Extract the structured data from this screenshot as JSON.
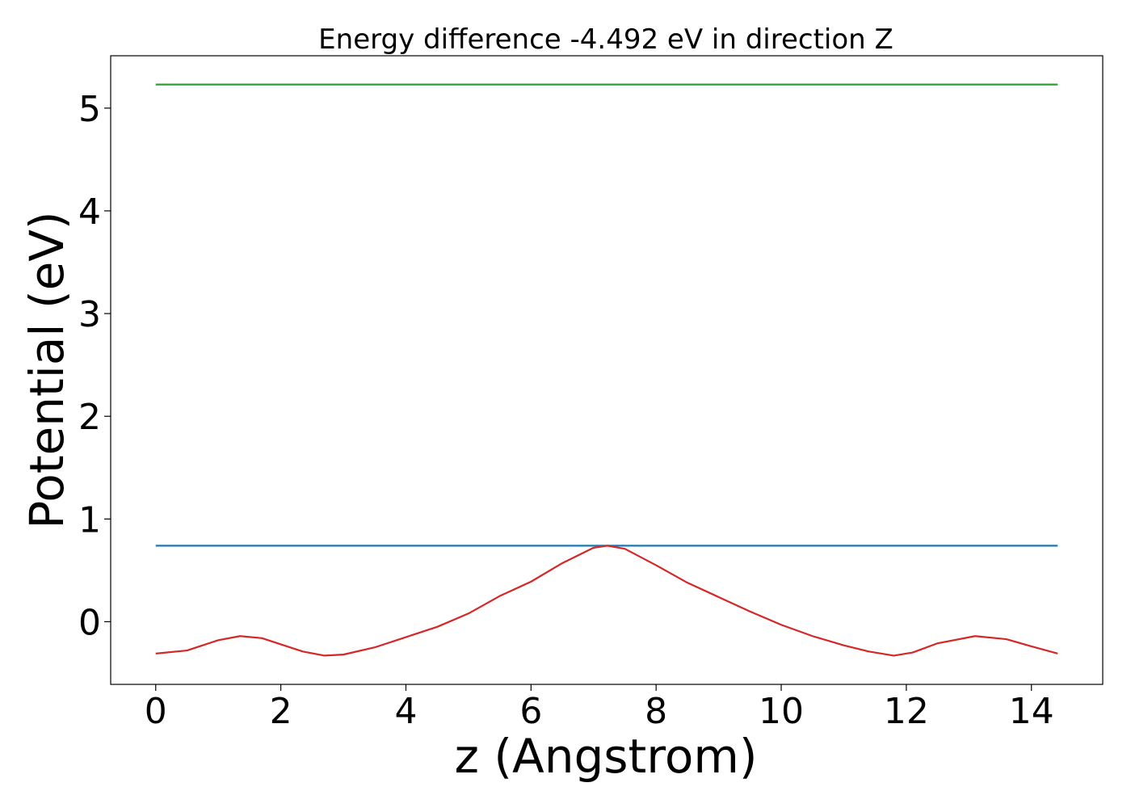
{
  "chart_data": {
    "type": "line",
    "title": "Energy difference -4.492 eV in direction Z",
    "xlabel": "z (Angstrom)",
    "ylabel": "Potential (eV)",
    "xlim": [
      -0.72,
      15.14
    ],
    "ylim": [
      -0.61,
      5.51
    ],
    "xticks": [
      0,
      2,
      4,
      6,
      8,
      10,
      12,
      14
    ],
    "yticks": [
      0,
      1,
      2,
      3,
      4,
      5
    ],
    "grid": false,
    "legend": "none",
    "series": [
      {
        "color": "#2ca02c",
        "x": [
          0,
          14.42
        ],
        "y": [
          5.23,
          5.23
        ]
      },
      {
        "color": "#1f77b4",
        "x": [
          0,
          14.42
        ],
        "y": [
          0.74,
          0.74
        ]
      },
      {
        "color": "#d62728",
        "x": [
          0,
          0.5,
          1.0,
          1.35,
          1.7,
          2.0,
          2.35,
          2.7,
          3.0,
          3.5,
          4.0,
          4.5,
          5.0,
          5.5,
          6.0,
          6.5,
          7.0,
          7.22,
          7.5,
          8.0,
          8.5,
          9.0,
          9.5,
          10.0,
          10.5,
          11.0,
          11.4,
          11.8,
          12.1,
          12.5,
          13.1,
          13.6,
          14.0,
          14.42
        ],
        "y": [
          -0.31,
          -0.28,
          -0.18,
          -0.14,
          -0.16,
          -0.22,
          -0.29,
          -0.33,
          -0.32,
          -0.25,
          -0.15,
          -0.05,
          0.08,
          0.25,
          0.39,
          0.57,
          0.72,
          0.74,
          0.71,
          0.55,
          0.38,
          0.24,
          0.1,
          -0.03,
          -0.14,
          -0.23,
          -0.29,
          -0.33,
          -0.3,
          -0.21,
          -0.14,
          -0.17,
          -0.24,
          -0.31
        ]
      }
    ]
  }
}
